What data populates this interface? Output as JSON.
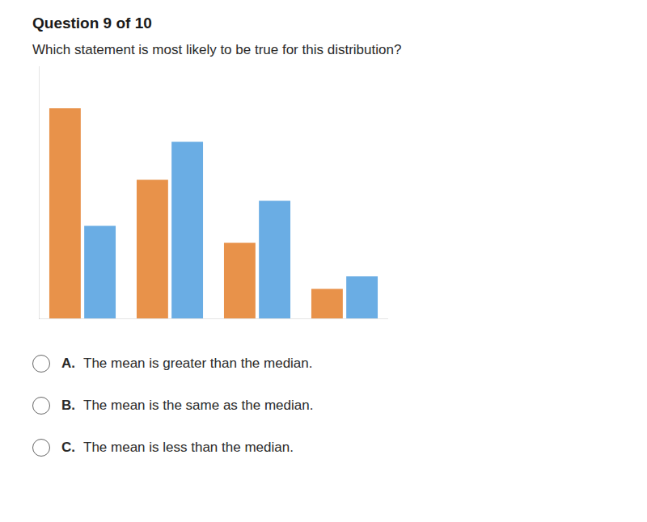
{
  "chart_data": {
    "type": "bar",
    "title": "Question 9 of 10",
    "subtitle": "Which statement is most likely to be true for this distribution?",
    "categories": [
      null,
      null,
      null,
      null
    ],
    "series": [
      {
        "color": "#E8924A",
        "values": [
          5.0,
          3.3,
          1.8,
          0.7
        ]
      },
      {
        "color": "#6AADE4",
        "values": [
          2.2,
          4.2,
          2.8,
          1.0
        ]
      }
    ],
    "ylim": [
      0,
      6.0
    ],
    "tick_labels": false,
    "grid": false,
    "annotations": [
      {
        "label": "A.",
        "text": "The mean is greater than the median."
      },
      {
        "label": "B.",
        "text": "The mean is the same as the median."
      },
      {
        "label": "C.",
        "text": "The mean is less than the median."
      }
    ]
  }
}
